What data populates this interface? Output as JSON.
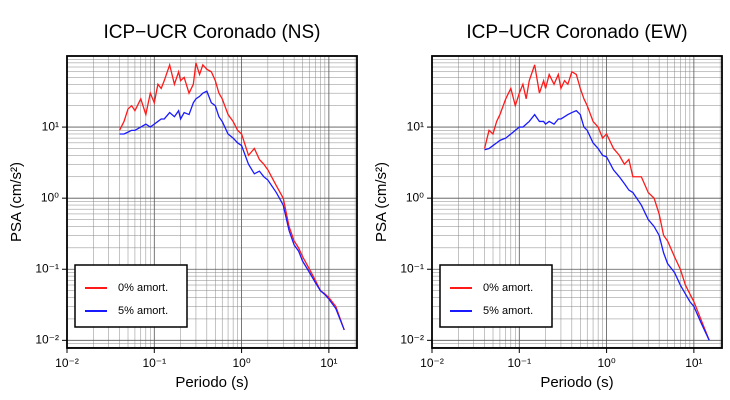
{
  "chart_data": [
    {
      "type": "line",
      "title": "ICP−UCR Coronado (NS)",
      "xlabel": "Periodo (s)",
      "ylabel": "PSA (cm/s²)",
      "log_x": true,
      "log_y": true,
      "grid": true,
      "legend": "lower left",
      "xlim": [
        0.01,
        21
      ],
      "ylim": [
        0.0078,
        100
      ],
      "xticks": [
        {
          "value": 0.01,
          "label": "10⁻²"
        },
        {
          "value": 0.1,
          "label": "10⁻¹"
        },
        {
          "value": 1,
          "label": "10⁰"
        },
        {
          "value": 10,
          "label": "10¹"
        }
      ],
      "yticks": [
        {
          "value": 0.01,
          "label": "10⁻²"
        },
        {
          "value": 0.1,
          "label": "10⁻¹"
        },
        {
          "value": 1,
          "label": "10⁰"
        },
        {
          "value": 10,
          "label": "10¹"
        }
      ],
      "x": [
        0.04,
        0.045,
        0.05,
        0.055,
        0.06,
        0.07,
        0.08,
        0.09,
        0.1,
        0.11,
        0.12,
        0.13,
        0.15,
        0.17,
        0.19,
        0.2,
        0.22,
        0.25,
        0.28,
        0.3,
        0.33,
        0.36,
        0.4,
        0.45,
        0.5,
        0.55,
        0.6,
        0.7,
        0.8,
        0.9,
        1.0,
        1.2,
        1.4,
        1.6,
        1.8,
        2,
        2.5,
        3,
        3.5,
        4,
        4.5,
        5,
        6,
        7,
        8,
        9,
        10,
        12,
        15
      ],
      "series": [
        {
          "name": "0% amort.",
          "color": "#ff1a1a",
          "values": [
            9,
            12,
            18,
            20,
            17,
            25,
            15,
            30,
            22,
            40,
            35,
            45,
            75,
            40,
            60,
            45,
            50,
            30,
            40,
            80,
            55,
            75,
            65,
            60,
            45,
            30,
            25,
            15,
            12,
            9,
            8,
            4,
            5,
            3.5,
            3,
            2.5,
            1.5,
            1,
            0.4,
            0.25,
            0.2,
            0.15,
            0.1,
            0.07,
            0.05,
            0.045,
            0.04,
            0.03,
            0.014
          ]
        },
        {
          "name": "5% amort.",
          "color": "#1a1aff",
          "values": [
            8,
            8,
            8.5,
            9,
            9,
            10,
            11,
            10,
            11,
            12,
            13,
            13,
            16,
            14,
            17,
            13,
            16,
            15,
            22,
            25,
            27,
            30,
            32,
            22,
            20,
            14,
            12,
            8,
            7,
            6,
            5.5,
            3,
            2.2,
            2.4,
            2,
            1.8,
            1.2,
            0.8,
            0.35,
            0.22,
            0.18,
            0.13,
            0.09,
            0.065,
            0.05,
            0.044,
            0.038,
            0.028,
            0.014
          ]
        }
      ]
    },
    {
      "type": "line",
      "title": "ICP−UCR Coronado (EW)",
      "xlabel": "Periodo (s)",
      "ylabel": "PSA (cm/s²)",
      "log_x": true,
      "log_y": true,
      "grid": true,
      "legend": "lower left",
      "xlim": [
        0.01,
        21
      ],
      "ylim": [
        0.0078,
        100
      ],
      "xticks": [
        {
          "value": 0.01,
          "label": "10⁻²"
        },
        {
          "value": 0.1,
          "label": "10⁻¹"
        },
        {
          "value": 1,
          "label": "10⁰"
        },
        {
          "value": 10,
          "label": "10¹"
        }
      ],
      "yticks": [
        {
          "value": 0.01,
          "label": "10⁻²"
        },
        {
          "value": 0.1,
          "label": "10⁻¹"
        },
        {
          "value": 1,
          "label": "10⁰"
        },
        {
          "value": 10,
          "label": "10¹"
        }
      ],
      "x": [
        0.04,
        0.045,
        0.05,
        0.055,
        0.06,
        0.07,
        0.08,
        0.09,
        0.1,
        0.11,
        0.12,
        0.13,
        0.15,
        0.17,
        0.19,
        0.2,
        0.22,
        0.25,
        0.28,
        0.3,
        0.33,
        0.36,
        0.4,
        0.45,
        0.5,
        0.55,
        0.6,
        0.7,
        0.8,
        0.9,
        1.0,
        1.2,
        1.4,
        1.6,
        1.8,
        2,
        2.5,
        3,
        3.5,
        4,
        4.5,
        5,
        6,
        7,
        8,
        9,
        10,
        12,
        15
      ],
      "series": [
        {
          "name": "0% amort.",
          "color": "#ff1a1a",
          "values": [
            5,
            9,
            8,
            12,
            15,
            25,
            35,
            20,
            30,
            40,
            25,
            45,
            75,
            30,
            45,
            35,
            55,
            40,
            55,
            35,
            45,
            40,
            60,
            55,
            35,
            25,
            20,
            12,
            10,
            7,
            8,
            5,
            4,
            3,
            3.5,
            2,
            2,
            1.2,
            1,
            0.6,
            0.3,
            0.25,
            0.15,
            0.1,
            0.06,
            0.045,
            0.035,
            0.02,
            0.01
          ]
        },
        {
          "name": "5% amort.",
          "color": "#1a1aff",
          "values": [
            4.8,
            5,
            5.5,
            6,
            6.5,
            7,
            8,
            9,
            10,
            10,
            11,
            12,
            15,
            12,
            12,
            11,
            12,
            11,
            13,
            13,
            14,
            15,
            16,
            17,
            15,
            10,
            9,
            6,
            5,
            4,
            3.8,
            2.5,
            2,
            1.6,
            1.3,
            1.2,
            0.8,
            0.5,
            0.4,
            0.3,
            0.17,
            0.12,
            0.09,
            0.06,
            0.045,
            0.035,
            0.03,
            0.018,
            0.01
          ]
        }
      ]
    }
  ]
}
